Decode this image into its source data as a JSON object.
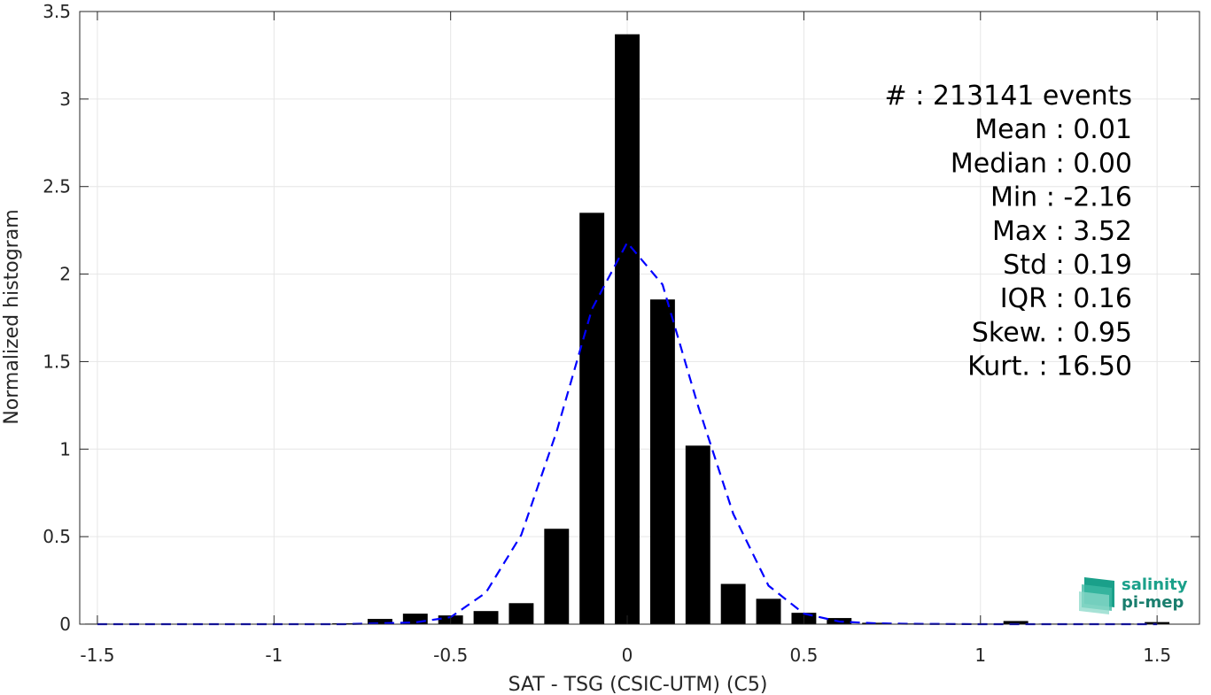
{
  "chart_data": {
    "type": "bar",
    "xlabel": "SAT - TSG (CSIC-UTM) (C5)",
    "ylabel": "Normalized histogram",
    "xlim": [
      -1.55,
      1.62
    ],
    "ylim": [
      0,
      3.5
    ],
    "grid": true,
    "xticks": [
      -1.5,
      -1,
      -0.5,
      0,
      0.5,
      1,
      1.5
    ],
    "xtick_labels": [
      "-1.5",
      "-1",
      "-0.5",
      "0",
      "0.5",
      "1",
      "1.5"
    ],
    "yticks": [
      0,
      0.5,
      1,
      1.5,
      2,
      2.5,
      3,
      3.5
    ],
    "ytick_labels": [
      "0",
      "0.5",
      "1",
      "1.5",
      "2",
      "2.5",
      "3",
      "3.5"
    ],
    "bar_width": 0.07,
    "bars": {
      "x": [
        -1.5,
        -1.4,
        -1.3,
        -1.2,
        -1.1,
        -1.0,
        -0.9,
        -0.8,
        -0.7,
        -0.6,
        -0.5,
        -0.4,
        -0.3,
        -0.2,
        -0.1,
        0.0,
        0.1,
        0.2,
        0.3,
        0.4,
        0.5,
        0.6,
        0.7,
        0.8,
        0.9,
        1.0,
        1.1,
        1.2,
        1.3,
        1.4,
        1.5
      ],
      "values": [
        0.003,
        0.002,
        0.002,
        0.002,
        0.002,
        0.002,
        0.003,
        0.005,
        0.03,
        0.06,
        0.05,
        0.075,
        0.12,
        0.545,
        2.35,
        3.37,
        1.855,
        1.02,
        0.23,
        0.145,
        0.065,
        0.035,
        0.008,
        0.004,
        0.003,
        0.003,
        0.018,
        0.003,
        0.003,
        0.003,
        0.012
      ],
      "color": "#000000"
    },
    "fit_curve": {
      "x": [
        -1.5,
        -1.2,
        -1.0,
        -0.8,
        -0.6,
        -0.5,
        -0.4,
        -0.3,
        -0.2,
        -0.1,
        0.0,
        0.1,
        0.2,
        0.3,
        0.4,
        0.5,
        0.6,
        0.7,
        0.8,
        1.0,
        1.2,
        1.5
      ],
      "values": [
        0.0,
        0.0,
        0.0,
        0.0,
        0.01,
        0.04,
        0.18,
        0.51,
        1.1,
        1.8,
        2.18,
        1.94,
        1.25,
        0.63,
        0.22,
        0.06,
        0.015,
        0.005,
        0.002,
        0.0,
        0.0,
        0.0
      ],
      "color": "#0000ff",
      "style": "dashed"
    },
    "annotations": [
      "#  : 213141 events",
      "Mean : 0.01",
      "Median : 0.00",
      "Min : -2.16",
      "Max : 3.52",
      "Std : 0.19",
      "IQR : 0.16",
      "Skew. : 0.95",
      "Kurt. : 16.50"
    ]
  },
  "logo": {
    "line1": "salinity",
    "line2": "pi-mep",
    "color": "#1aa08a"
  }
}
